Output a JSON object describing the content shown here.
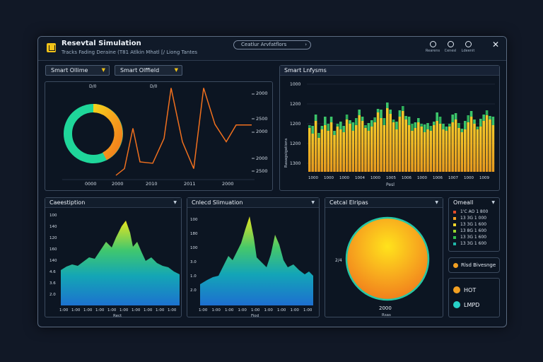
{
  "window": {
    "title": "Resevtal Simulation",
    "subtitle": "Tracks Fading Deraine (T81 Atlkin Mhatl [/ Liong Tantes",
    "search_text": "Ceatlur Arvfatflors",
    "toolbar": [
      {
        "icon": "leaf-icon",
        "label": "Rearens"
      },
      {
        "icon": "nodes-icon",
        "label": "Cenesl"
      },
      {
        "icon": "user-icon",
        "label": "Ldeenit"
      }
    ],
    "close_glyph": "✕"
  },
  "controls": {
    "dropdown1": "Smart Ollime",
    "dropdown2": "Smart Olffield"
  },
  "top_left_chart": {
    "top_labels": [
      "D/0",
      "D/0"
    ],
    "right_labels": [
      "2000",
      "2500",
      "2000",
      "2000",
      "2500"
    ],
    "bottom_labels": [
      "0000",
      "2000",
      "2010",
      "2011",
      "2000"
    ]
  },
  "top_right_panel": {
    "title": "Smart Lnfysms",
    "y_labels": [
      "1000",
      "1200",
      "1200",
      "1200",
      "1300"
    ],
    "side_label": "Rasagsigations",
    "x_labels": [
      "1000",
      "1000",
      "1000",
      "1004",
      "1000",
      "1005",
      "1006",
      "1000",
      "1006",
      "1007",
      "1000",
      "1009"
    ],
    "footer": "Pesl"
  },
  "bottom_left_panel": {
    "title": "Caeestiption",
    "y_labels": [
      "100",
      "140",
      "120",
      "160",
      "140",
      "4.6",
      "3.6",
      "2.0"
    ],
    "x_labels": [
      "1:00",
      "1:00",
      "1:00",
      "1:00",
      "1:00",
      "1:00",
      "1:00",
      "1:00",
      "1:00",
      "1:00"
    ],
    "footer": "Rect"
  },
  "bottom_mid_panel": {
    "title": "Cnlecd Slimuation",
    "y_labels": [
      "100",
      "180",
      "100",
      "3.0",
      "1.0",
      "2.0"
    ],
    "x_labels": [
      "1:00",
      "1:00",
      "1:00",
      "1:00",
      "1:00",
      "1:00",
      "1:00",
      "1:00",
      "1:00"
    ],
    "footer": "Fiod"
  },
  "bottom_right_panel": {
    "title": "Cetcal Elripas",
    "side_label": "2/4",
    "value": "2000",
    "footer": "Rsas"
  },
  "legend_panel": {
    "title": "Omeall",
    "rows": [
      {
        "color": "#e24b2a",
        "text": "1'C AO 1 800"
      },
      {
        "color": "#f2a022",
        "text": "13 3G 1 000"
      },
      {
        "color": "#f2d52a",
        "text": "13 3G 1 600"
      },
      {
        "color": "#9ad42e",
        "text": "13 8G 1 600"
      },
      {
        "color": "#31c24f",
        "text": "13 3G 1 600"
      },
      {
        "color": "#1fb6a8",
        "text": "13 3G 1 600"
      }
    ]
  },
  "status_chip": {
    "color": "#f2a022",
    "text": "Rlsd Bivesnge"
  },
  "key_panel": [
    {
      "color": "#f2a022",
      "text": "HOT"
    },
    {
      "color": "#27d1c8",
      "text": "LMPD"
    }
  ],
  "colors": {
    "accent": "#f2c318",
    "orange": "#f28a22",
    "teal": "#22d3b5",
    "blue": "#1e6fd0"
  }
}
